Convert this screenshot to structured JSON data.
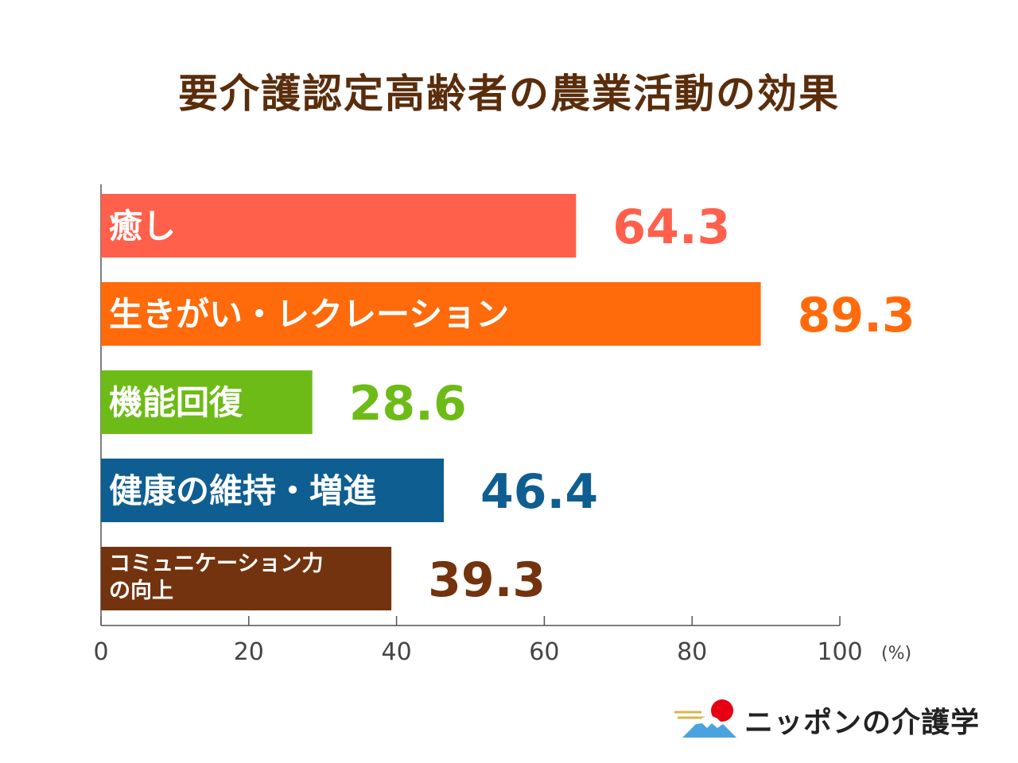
{
  "title": "要介護認定高齢者の農業活動の効果",
  "chart_data": {
    "type": "bar",
    "orientation": "horizontal",
    "categories": [
      "癒し",
      "生きがい・レクレーション",
      "機能回復",
      "健康の維持・増進",
      "コミュニケーション力の向上"
    ],
    "category_lines": [
      [
        "癒し"
      ],
      [
        "生きがい・レクレーション"
      ],
      [
        "機能回復"
      ],
      [
        "健康の維持・増進"
      ],
      [
        "コミュニケーション力",
        "の向上"
      ]
    ],
    "values": [
      64.3,
      89.3,
      28.6,
      46.4,
      39.3
    ],
    "value_labels": [
      "64.3",
      "89.3",
      "28.6",
      "46.4",
      "39.3"
    ],
    "colors": [
      "#ff604c",
      "#ff6a0a",
      "#6dbb16",
      "#0f5e92",
      "#73330e"
    ],
    "xlim": [
      0,
      100
    ],
    "xticks": [
      0,
      20,
      40,
      60,
      80,
      100
    ],
    "xtick_labels": [
      "0",
      "20",
      "40",
      "60",
      "80",
      "100"
    ],
    "unit": "(%)",
    "grid": false,
    "legend": "none"
  },
  "logo": {
    "text": "ニッポンの介護学"
  }
}
